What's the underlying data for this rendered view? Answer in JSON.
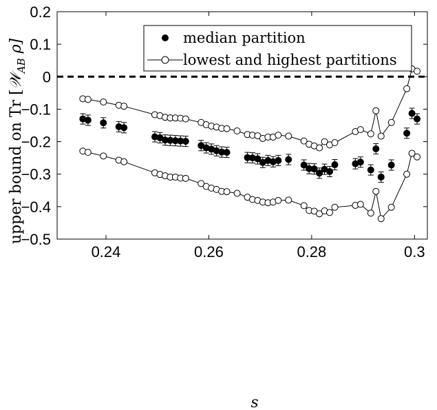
{
  "chart_data": {
    "type": "scatter",
    "xlabel": "s",
    "ylabel": "upper bound on Tr [𝒲AB ρ]",
    "ylabel_parts": {
      "prefix": "upper bound on Tr [",
      "script_w": "𝒲",
      "subscript": "AB",
      "suffix": " ρ]"
    },
    "xlim": [
      0.2305,
      0.3025
    ],
    "ylim": [
      -0.5,
      0.2
    ],
    "xticks": [
      0.24,
      0.26,
      0.28,
      0.3
    ],
    "xtick_labels": [
      "0.24",
      "0.26",
      "0.28",
      "0.3"
    ],
    "yticks": [
      -0.5,
      -0.4,
      -0.3,
      -0.2,
      -0.1,
      0,
      0.1,
      0.2
    ],
    "ytick_labels": [
      "−0.5",
      "−0.4",
      "−0.3",
      "−0.2",
      "−0.1",
      "0",
      "0.1",
      "0.2"
    ],
    "grid": false,
    "legend_position": "top-right",
    "reference_line": {
      "y": 0,
      "style": "dashed"
    },
    "series": [
      {
        "name": "median partition",
        "marker": "filled-circle",
        "errorbar": 0.016,
        "x": [
          0.2355,
          0.2365,
          0.2395,
          0.2425,
          0.2435,
          0.2495,
          0.2505,
          0.2515,
          0.2525,
          0.2535,
          0.2545,
          0.2555,
          0.2585,
          0.2595,
          0.2605,
          0.2615,
          0.2625,
          0.2635,
          0.2675,
          0.2685,
          0.2695,
          0.2705,
          0.2715,
          0.2725,
          0.2735,
          0.2755,
          0.2785,
          0.2795,
          0.2805,
          0.2815,
          0.2825,
          0.2835,
          0.2845,
          0.2885,
          0.2895,
          0.2915,
          0.2925,
          0.2935,
          0.2955,
          0.2985,
          0.2995,
          0.3005
        ],
        "y": [
          -0.13,
          -0.134,
          -0.142,
          -0.154,
          -0.157,
          -0.185,
          -0.188,
          -0.195,
          -0.196,
          -0.197,
          -0.198,
          -0.199,
          -0.212,
          -0.219,
          -0.223,
          -0.228,
          -0.232,
          -0.233,
          -0.249,
          -0.25,
          -0.253,
          -0.264,
          -0.258,
          -0.262,
          -0.258,
          -0.255,
          -0.272,
          -0.283,
          -0.284,
          -0.297,
          -0.285,
          -0.292,
          -0.271,
          -0.268,
          -0.263,
          -0.287,
          -0.222,
          -0.309,
          -0.272,
          -0.174,
          -0.113,
          -0.13
        ]
      },
      {
        "name": "lowest and highest partitions",
        "marker": "open-circle-line",
        "upper": {
          "x": [
            0.2355,
            0.2365,
            0.2395,
            0.2425,
            0.2435,
            0.2495,
            0.2505,
            0.2515,
            0.2525,
            0.2535,
            0.2545,
            0.2555,
            0.2585,
            0.2595,
            0.2605,
            0.2615,
            0.2625,
            0.2635,
            0.2655,
            0.2675,
            0.2685,
            0.2695,
            0.2705,
            0.2715,
            0.2725,
            0.2735,
            0.2755,
            0.2785,
            0.2795,
            0.2805,
            0.2815,
            0.2825,
            0.2835,
            0.2845,
            0.2885,
            0.2895,
            0.2915,
            0.2925,
            0.2935,
            0.2955,
            0.2985,
            0.2995,
            0.3005
          ],
          "y": [
            -0.068,
            -0.07,
            -0.078,
            -0.088,
            -0.091,
            -0.117,
            -0.12,
            -0.125,
            -0.127,
            -0.127,
            -0.128,
            -0.13,
            -0.141,
            -0.148,
            -0.152,
            -0.155,
            -0.159,
            -0.16,
            -0.167,
            -0.178,
            -0.18,
            -0.182,
            -0.19,
            -0.186,
            -0.186,
            -0.18,
            -0.183,
            -0.198,
            -0.208,
            -0.213,
            -0.219,
            -0.2,
            -0.21,
            -0.203,
            -0.169,
            -0.163,
            -0.176,
            -0.105,
            -0.183,
            -0.141,
            -0.037,
            0.024,
            0.017
          ]
        },
        "lower": {
          "x": [
            0.2355,
            0.2365,
            0.2395,
            0.2425,
            0.2435,
            0.2495,
            0.2505,
            0.2515,
            0.2525,
            0.2535,
            0.2545,
            0.2555,
            0.2585,
            0.2595,
            0.2605,
            0.2615,
            0.2625,
            0.2635,
            0.2655,
            0.2675,
            0.2685,
            0.2695,
            0.2705,
            0.2715,
            0.2725,
            0.2735,
            0.2755,
            0.2785,
            0.2795,
            0.2805,
            0.2815,
            0.2825,
            0.2835,
            0.2845,
            0.2885,
            0.2895,
            0.2915,
            0.2925,
            0.2935,
            0.2955,
            0.2985,
            0.2995,
            0.3005
          ],
          "y": [
            -0.229,
            -0.233,
            -0.244,
            -0.257,
            -0.262,
            -0.296,
            -0.301,
            -0.305,
            -0.309,
            -0.309,
            -0.312,
            -0.313,
            -0.329,
            -0.338,
            -0.343,
            -0.347,
            -0.353,
            -0.354,
            -0.359,
            -0.371,
            -0.378,
            -0.381,
            -0.386,
            -0.388,
            -0.386,
            -0.381,
            -0.38,
            -0.397,
            -0.412,
            -0.414,
            -0.422,
            -0.413,
            -0.418,
            -0.402,
            -0.396,
            -0.393,
            -0.42,
            -0.353,
            -0.437,
            -0.402,
            -0.3,
            -0.236,
            -0.247
          ]
        }
      }
    ]
  }
}
